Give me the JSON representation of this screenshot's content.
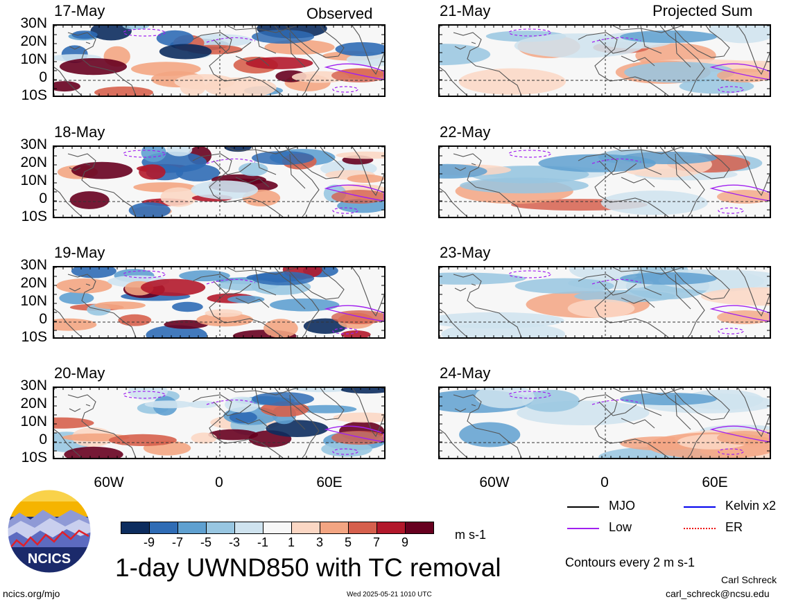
{
  "headers": {
    "left": "Observed",
    "right": "Projected Sum"
  },
  "lat_labels": [
    "30N",
    "20N",
    "10N",
    "0",
    "10S"
  ],
  "lon_labels": [
    "60W",
    "0",
    "60E"
  ],
  "panels_left": [
    {
      "date": "17-May"
    },
    {
      "date": "18-May"
    },
    {
      "date": "19-May"
    },
    {
      "date": "20-May"
    }
  ],
  "panels_right": [
    {
      "date": "21-May"
    },
    {
      "date": "22-May"
    },
    {
      "date": "23-May"
    },
    {
      "date": "24-May"
    }
  ],
  "colorbar": {
    "labels": [
      "-9",
      "-7",
      "-5",
      "-3",
      "-1",
      "1",
      "3",
      "5",
      "7",
      "9"
    ],
    "colors": [
      "#0c2c5e",
      "#2f6cb5",
      "#5fa0d0",
      "#98c6e1",
      "#cfe3ef",
      "#f7f7f7",
      "#fbd7c4",
      "#f3a582",
      "#d6604d",
      "#b2182b",
      "#67001f"
    ],
    "units": "m s-1"
  },
  "legend": {
    "items": [
      {
        "label": "MJO",
        "color": "#000000"
      },
      {
        "label": "Kelvin x2",
        "color": "#0000ee"
      },
      {
        "label": "Low",
        "color": "#a020f0"
      },
      {
        "label": "ER",
        "color": "#ee0000"
      }
    ],
    "contour_note": "Contours every 2 m s-1"
  },
  "title": "1-day UWND850 with TC removal",
  "logo_text": "NCICS",
  "footer": {
    "url": "ncics.org/mjo",
    "timestamp": "Wed 2025-05-21 1010 UTC",
    "author": "Carl Schreck",
    "email": "carl_schreck@ncsu.edu"
  }
}
